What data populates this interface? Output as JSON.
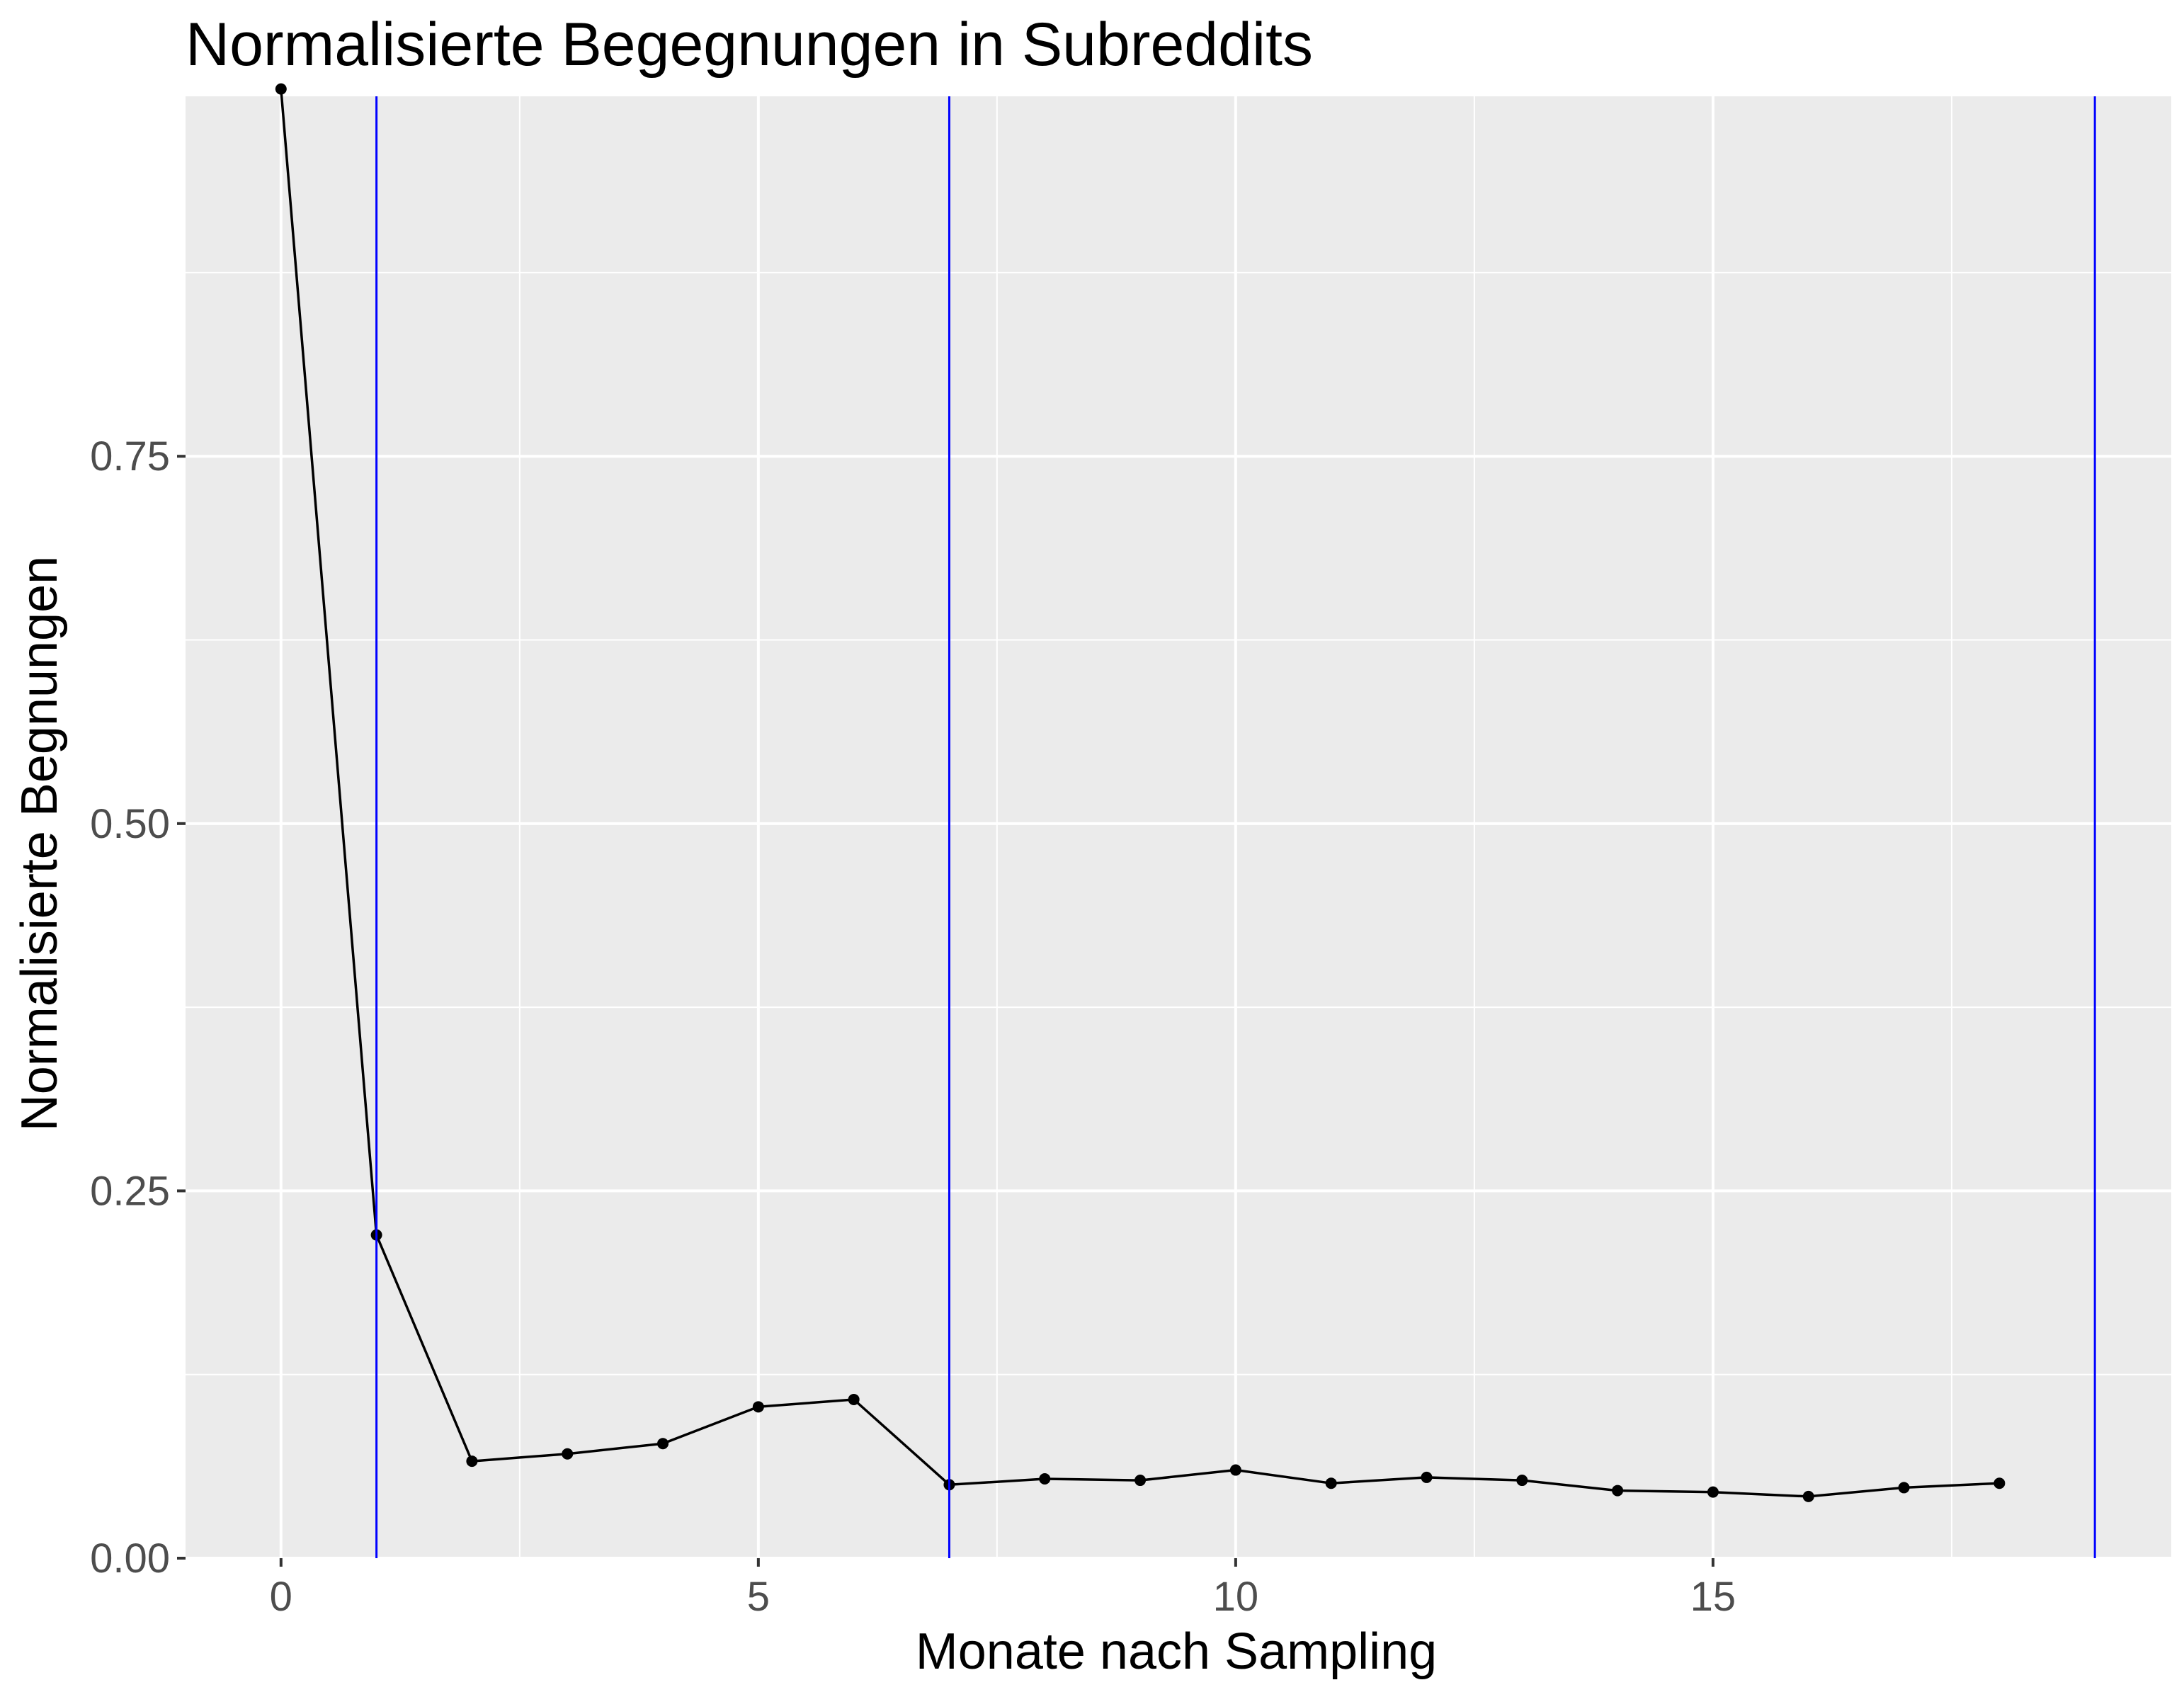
{
  "chart_data": {
    "type": "line",
    "title": "Normalisierte Begegnungen in Subreddits",
    "xlabel": "Monate nach Sampling",
    "ylabel": "Normalisierte Begnungen",
    "xlim": [
      -1.0,
      19.8
    ],
    "ylim": [
      0.0,
      0.995
    ],
    "x_ticks": [
      0,
      5,
      10,
      15
    ],
    "x_tick_labels": [
      "0",
      "5",
      "10",
      "15"
    ],
    "y_ticks": [
      0.0,
      0.25,
      0.5,
      0.75
    ],
    "y_tick_labels": [
      "0.00",
      "0.25",
      "0.50",
      "0.75"
    ],
    "grid": true,
    "series": [
      {
        "x": [
          0,
          1,
          2,
          3,
          4,
          5,
          6,
          7,
          8,
          9,
          10,
          11,
          12,
          13,
          14,
          15,
          16,
          17,
          18
        ],
        "values": [
          1.0,
          0.22,
          0.066,
          0.071,
          0.078,
          0.103,
          0.108,
          0.05,
          0.054,
          0.053,
          0.06,
          0.051,
          0.055,
          0.053,
          0.046,
          0.045,
          0.042,
          0.048,
          0.051
        ],
        "color": "#000000"
      }
    ],
    "vlines": {
      "x": [
        1,
        7,
        19
      ],
      "color": "#0000ff"
    },
    "panel_color": "#ebebeb",
    "grid_color": "#ffffff"
  }
}
